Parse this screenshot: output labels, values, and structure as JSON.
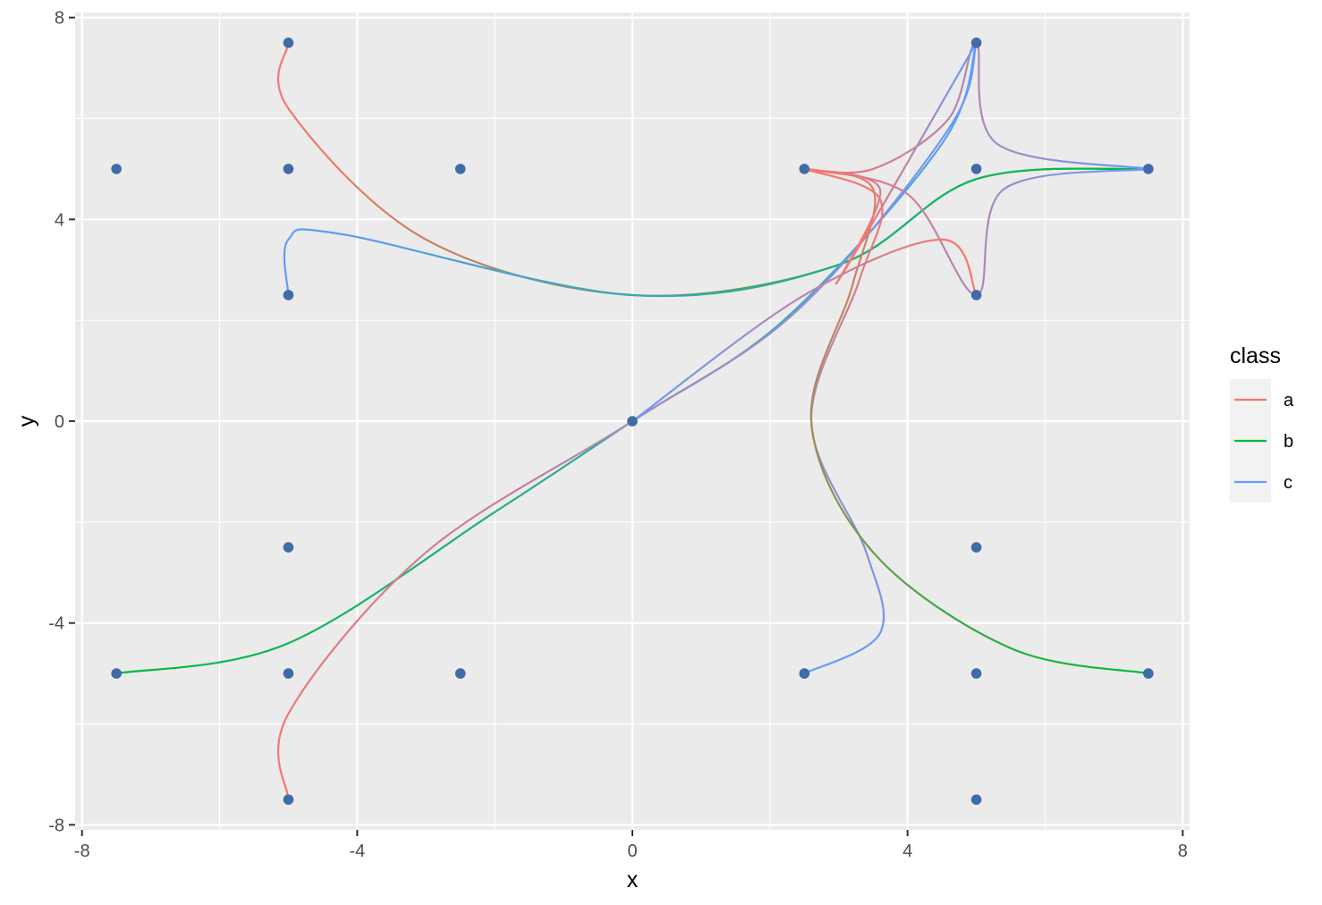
{
  "chart_data": {
    "type": "scatter",
    "title": "",
    "xlabel": "x",
    "ylabel": "y",
    "xlim": [
      -8.1,
      8.1
    ],
    "ylim": [
      -8.1,
      8.1
    ],
    "x_ticks": [
      -8,
      -4,
      0,
      4,
      8
    ],
    "x_tick_labels": [
      "-8",
      "-4",
      "0",
      "4",
      "8"
    ],
    "y_ticks": [
      -8,
      -4,
      0,
      4,
      8
    ],
    "y_tick_labels": [
      "-8",
      "-4",
      "0",
      "4",
      "8"
    ],
    "x_minor": [
      -6,
      -2,
      2,
      6
    ],
    "y_minor": [
      -6,
      -2,
      2,
      6
    ],
    "grid": true,
    "panel_background": "#ebebeb",
    "point_color": "#3f6ba6",
    "points": [
      [
        -7.5,
        5
      ],
      [
        -5,
        7.5
      ],
      [
        -5,
        5
      ],
      [
        -2.5,
        5
      ],
      [
        -5,
        2.5
      ],
      [
        0,
        0
      ],
      [
        2.5,
        5
      ],
      [
        5,
        7.5
      ],
      [
        5,
        5
      ],
      [
        7.5,
        5
      ],
      [
        5,
        2.5
      ],
      [
        -5,
        -2.5
      ],
      [
        -7.5,
        -5
      ],
      [
        -5,
        -5
      ],
      [
        -2.5,
        -5
      ],
      [
        -5,
        -7.5
      ],
      [
        5,
        -2.5
      ],
      [
        2.5,
        -5
      ],
      [
        5,
        -5
      ],
      [
        7.5,
        -5
      ],
      [
        5,
        -7.5
      ]
    ],
    "legend": {
      "title": "class",
      "position": "right",
      "items": [
        {
          "label": "a",
          "color": "#F8766D"
        },
        {
          "label": "b",
          "color": "#00BA38"
        },
        {
          "label": "c",
          "color": "#619CFF"
        }
      ]
    },
    "series": [
      {
        "from_class": "a",
        "to_class": "b",
        "points": [
          [
            -5,
            7.5
          ],
          [
            -5,
            6.2
          ],
          [
            -3,
            3.6
          ],
          [
            0,
            2.5
          ],
          [
            3,
            3.1
          ],
          [
            5,
            4.8
          ],
          [
            7.5,
            5
          ]
        ]
      },
      {
        "from_class": "c",
        "to_class": "b",
        "points": [
          [
            -5,
            2.5
          ],
          [
            -5,
            3.6
          ],
          [
            -4.2,
            3.7
          ],
          [
            0,
            2.5
          ],
          [
            3,
            3.1
          ],
          [
            5,
            4.8
          ],
          [
            7.5,
            5
          ]
        ]
      },
      {
        "from_class": "b",
        "to_class": "c",
        "points": [
          [
            -7.5,
            -5
          ],
          [
            -5,
            -4.4
          ],
          [
            -2,
            -1.8
          ],
          [
            0,
            0
          ],
          [
            2.2,
            2.0
          ],
          [
            4.5,
            5.5
          ],
          [
            5,
            7.5
          ]
        ]
      },
      {
        "from_class": "a",
        "to_class": "c",
        "points": [
          [
            -5,
            -7.5
          ],
          [
            -5,
            -5.8
          ],
          [
            -3,
            -2.6
          ],
          [
            0,
            0
          ],
          [
            2.4,
            2.2
          ],
          [
            4.6,
            5.8
          ],
          [
            5,
            7.5
          ]
        ]
      },
      {
        "from_class": "a",
        "to_class": "c",
        "points": [
          [
            2.5,
            5
          ],
          [
            3.5,
            5
          ],
          [
            4.6,
            6.0
          ],
          [
            5,
            7.5
          ],
          [
            5.3,
            5.5
          ],
          [
            7.5,
            5
          ]
        ]
      },
      {
        "from_class": "a",
        "to_class": "c",
        "points": [
          [
            2.5,
            5
          ],
          [
            4.0,
            4.5
          ],
          [
            5,
            2.5
          ],
          [
            5.4,
            4.6
          ],
          [
            7.5,
            5
          ]
        ]
      },
      {
        "from_class": "a",
        "to_class": "c",
        "points": [
          [
            2.5,
            5
          ],
          [
            3.6,
            4.4
          ],
          [
            3.3,
            2.8
          ],
          [
            2.6,
            0.0
          ],
          [
            3.4,
            -2.6
          ],
          [
            3.6,
            -4.2
          ],
          [
            2.5,
            -5
          ]
        ]
      },
      {
        "from_class": "a",
        "to_class": "b",
        "points": [
          [
            2.5,
            5
          ],
          [
            3.5,
            4.6
          ],
          [
            3.2,
            2.7
          ],
          [
            2.6,
            0.0
          ],
          [
            3.5,
            -2.6
          ],
          [
            5.5,
            -4.5
          ],
          [
            7.5,
            -5
          ]
        ]
      },
      {
        "from_class": "a",
        "to_class": "c",
        "points": [
          [
            2.5,
            5
          ],
          [
            3.6,
            4.6
          ],
          [
            3.0,
            2.8
          ],
          [
            5,
            7.5
          ]
        ]
      },
      {
        "from_class": "c",
        "to_class": "a",
        "points": [
          [
            0,
            0
          ],
          [
            2.5,
            2.5
          ],
          [
            4.5,
            3.6
          ],
          [
            5,
            2.5
          ]
        ]
      }
    ]
  }
}
